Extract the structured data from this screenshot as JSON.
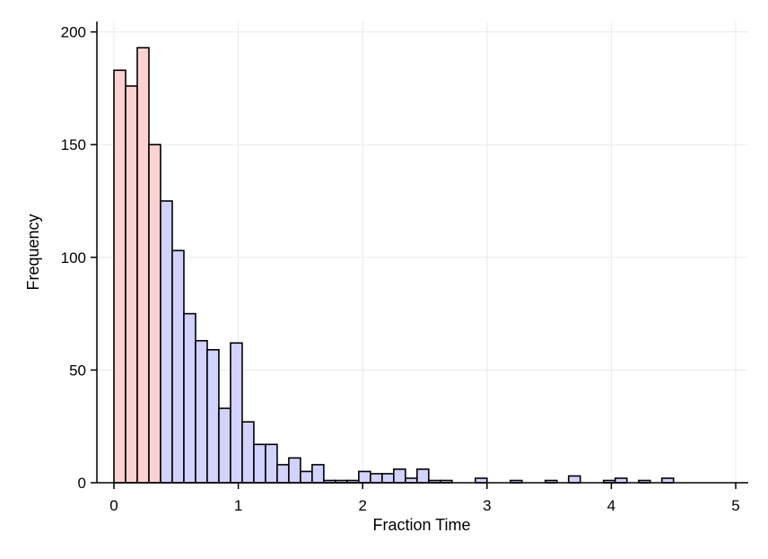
{
  "chart_data": {
    "type": "bar",
    "title": "",
    "xlabel": "Fraction Time",
    "ylabel": "Frequency",
    "xlim": [
      0,
      5
    ],
    "ylim": [
      0,
      200
    ],
    "xticks": [
      0,
      1,
      2,
      3,
      4,
      5
    ],
    "yticks": [
      0,
      50,
      100,
      150,
      200
    ],
    "grid": true,
    "bin_width": 0.09375,
    "series": [
      {
        "bins": [
          {
            "x0": 0.0,
            "count": 183
          },
          {
            "x0": 0.09375,
            "count": 176
          },
          {
            "x0": 0.1875,
            "count": 193
          },
          {
            "x0": 0.28125,
            "count": 150
          }
        ],
        "color": "#ffd2d2"
      },
      {
        "bins": [
          {
            "x0": 0.375,
            "count": 125
          },
          {
            "x0": 0.46875,
            "count": 103
          },
          {
            "x0": 0.5625,
            "count": 75
          },
          {
            "x0": 0.65625,
            "count": 63
          },
          {
            "x0": 0.75,
            "count": 59
          },
          {
            "x0": 0.84375,
            "count": 33
          },
          {
            "x0": 0.9375,
            "count": 62
          },
          {
            "x0": 1.03125,
            "count": 27
          },
          {
            "x0": 1.125,
            "count": 17
          },
          {
            "x0": 1.21875,
            "count": 17
          },
          {
            "x0": 1.3125,
            "count": 8
          },
          {
            "x0": 1.40625,
            "count": 11
          },
          {
            "x0": 1.5,
            "count": 5
          },
          {
            "x0": 1.59375,
            "count": 8
          },
          {
            "x0": 1.6875,
            "count": 1
          },
          {
            "x0": 1.78125,
            "count": 1
          },
          {
            "x0": 1.875,
            "count": 1
          },
          {
            "x0": 1.96875,
            "count": 5
          },
          {
            "x0": 2.0625,
            "count": 4
          },
          {
            "x0": 2.15625,
            "count": 4
          },
          {
            "x0": 2.25,
            "count": 6
          },
          {
            "x0": 2.34375,
            "count": 2
          },
          {
            "x0": 2.4375,
            "count": 6
          },
          {
            "x0": 2.53125,
            "count": 1
          },
          {
            "x0": 2.625,
            "count": 1
          },
          {
            "x0": 2.90625,
            "count": 2
          },
          {
            "x0": 3.1875,
            "count": 1
          },
          {
            "x0": 3.46875,
            "count": 1
          },
          {
            "x0": 3.65625,
            "count": 3
          },
          {
            "x0": 3.9375,
            "count": 1
          },
          {
            "x0": 4.03125,
            "count": 2
          },
          {
            "x0": 4.21875,
            "count": 1
          },
          {
            "x0": 4.40625,
            "count": 2
          }
        ],
        "color": "#d2d2ff"
      }
    ]
  }
}
